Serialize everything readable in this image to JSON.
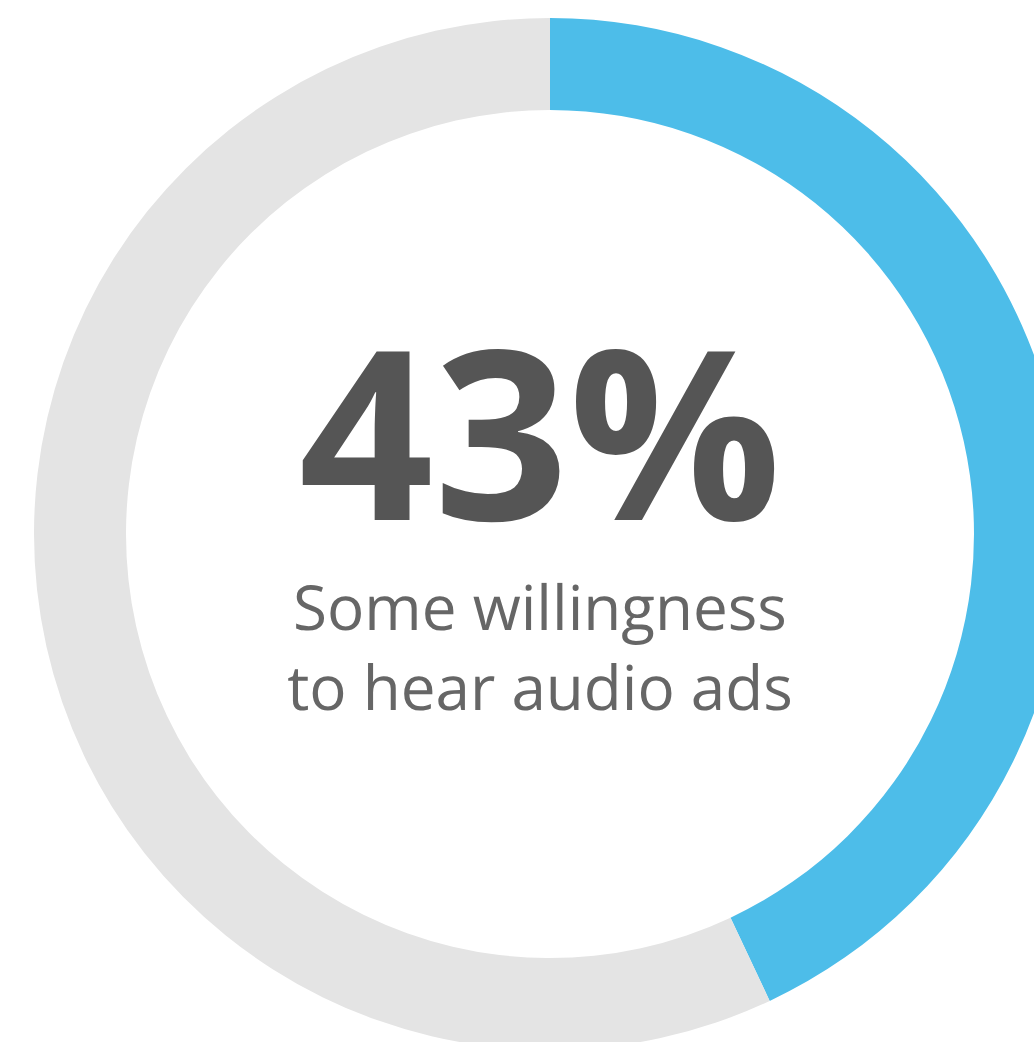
{
  "chart_data": {
    "type": "donut",
    "categories": [
      "Some willingness to hear audio ads",
      null
    ],
    "values": [
      43,
      57
    ],
    "colors": [
      "#4dbde9",
      "#e4e4e4"
    ],
    "value_labels": [
      "43%",
      null
    ]
  }
}
